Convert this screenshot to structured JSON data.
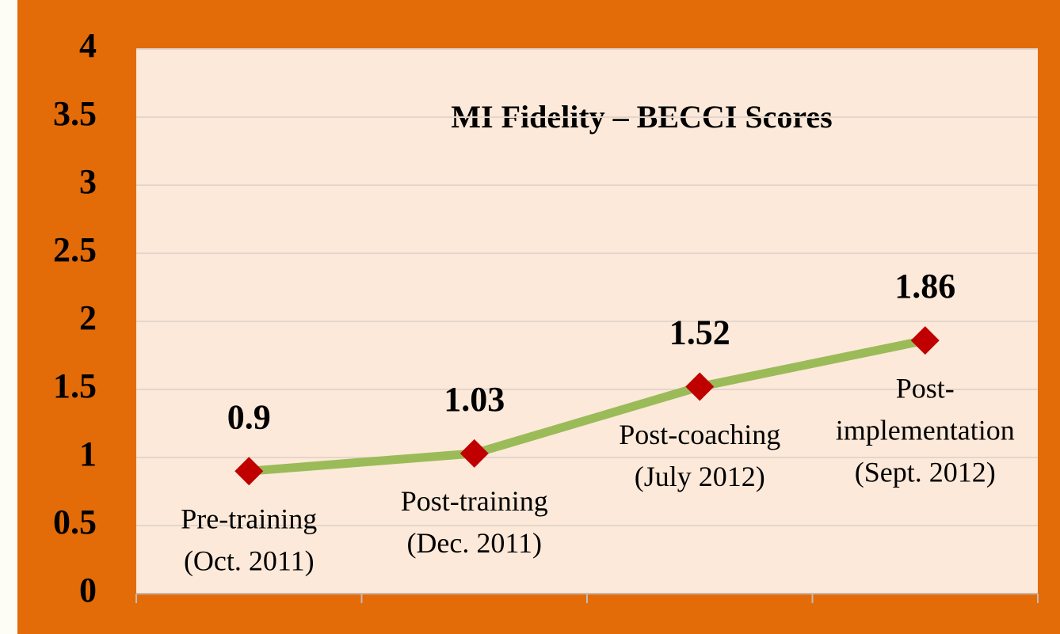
{
  "chart_data": {
    "type": "line",
    "title": "MI Fidelity – BECCI Scores",
    "categories": [
      [
        "Pre-training",
        "(Oct. 2011)"
      ],
      [
        "Post-training",
        "(Dec. 2011)"
      ],
      [
        "Post-coaching",
        "(July 2012)"
      ],
      [
        "Post-",
        "implementation",
        "(Sept. 2012)"
      ]
    ],
    "values": [
      0.9,
      1.03,
      1.52,
      1.86
    ],
    "color": "#9bbb59",
    "marker_color": "#c00000",
    "ylim": [
      0,
      4
    ],
    "yticks": [
      0,
      0.5,
      1,
      1.5,
      2,
      2.5,
      3,
      3.5,
      4
    ],
    "grid": true
  }
}
